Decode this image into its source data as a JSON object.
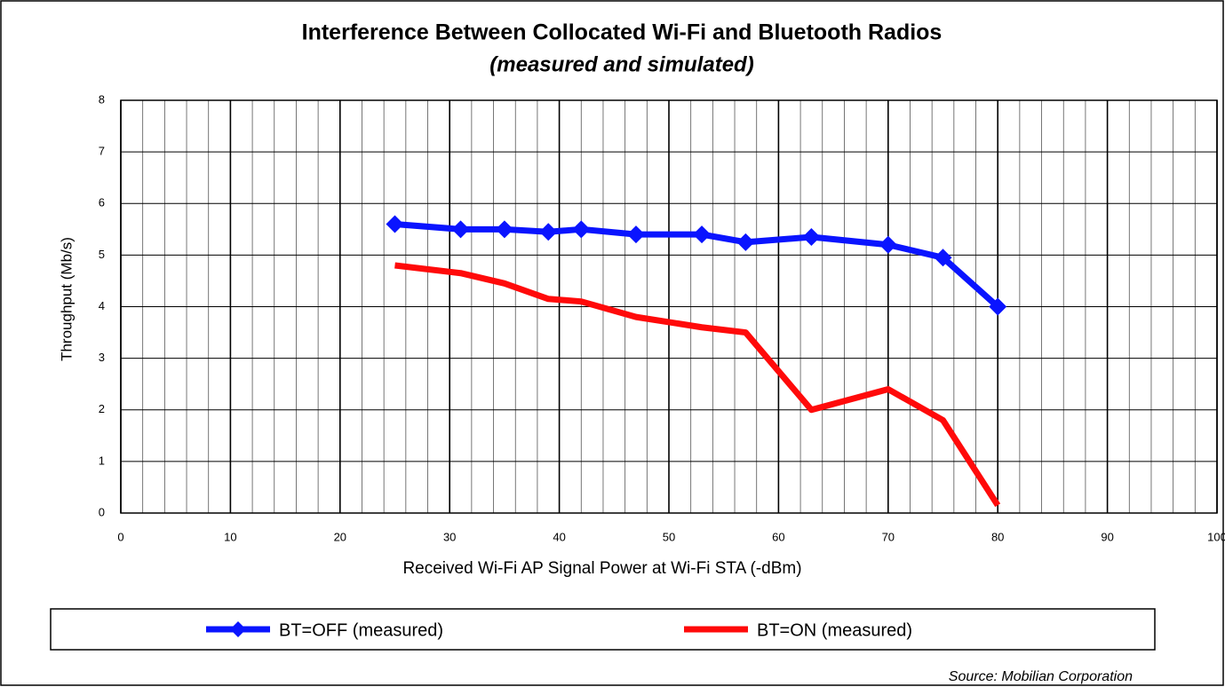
{
  "chart_data": {
    "type": "line",
    "title": "Interference Between Collocated Wi-Fi and Bluetooth Radios",
    "subtitle": "(measured and simulated)",
    "x_label": "Received Wi-Fi AP Signal Power at Wi-Fi STA (-dBm)",
    "y_label": "Throughput (Mb/s)",
    "source": "Source:  Mobilian Corporation",
    "x": [
      25,
      31,
      35,
      39,
      42,
      47,
      53,
      57,
      63,
      70,
      75,
      80
    ],
    "series": [
      {
        "name": "BT=OFF (measured)",
        "color": "#0a14ff",
        "marker": "diamond",
        "values": [
          5.6,
          5.5,
          5.5,
          5.45,
          5.5,
          5.4,
          5.4,
          5.25,
          5.35,
          5.2,
          4.95,
          4.0
        ]
      },
      {
        "name": "BT=ON (measured)",
        "color": "#ff0a0a",
        "marker": "none",
        "values": [
          4.8,
          4.65,
          4.45,
          4.15,
          4.1,
          3.8,
          3.6,
          3.5,
          2.0,
          2.4,
          1.8,
          0.15
        ]
      }
    ],
    "xlim": [
      0,
      100
    ],
    "xticks": [
      0,
      10,
      20,
      30,
      40,
      50,
      60,
      70,
      80,
      90,
      100
    ],
    "ylim": [
      0,
      8
    ],
    "yticks": [
      0,
      1,
      2,
      3,
      4,
      5,
      6,
      7,
      8
    ],
    "grid": true,
    "legend": "bottom"
  }
}
